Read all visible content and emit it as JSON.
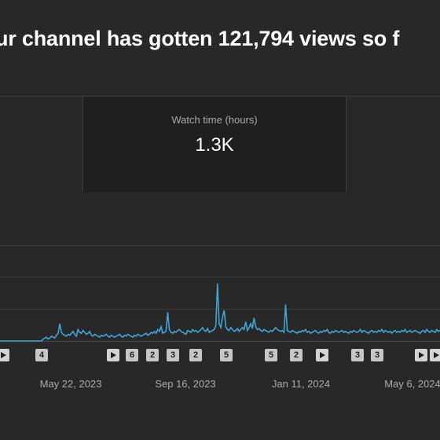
{
  "header": {
    "headline": "ur channel has gotten 121,794 views so f"
  },
  "metrics": {
    "watch_time_label": "Watch time (hours)",
    "watch_time_value": "1.3K"
  },
  "colors": {
    "line": "#3ea6d6",
    "background": "#282828",
    "card": "#1f1f1f"
  },
  "markers": [
    {
      "type": "play",
      "label": ""
    },
    {
      "type": "number",
      "label": "4"
    },
    {
      "type": "play",
      "label": ""
    },
    {
      "type": "number",
      "label": "6"
    },
    {
      "type": "number",
      "label": "2"
    },
    {
      "type": "number",
      "label": "3"
    },
    {
      "type": "number",
      "label": "2"
    },
    {
      "type": "number",
      "label": "5"
    },
    {
      "type": "number",
      "label": "5"
    },
    {
      "type": "number",
      "label": "2"
    },
    {
      "type": "play",
      "label": ""
    },
    {
      "type": "number",
      "label": "3"
    },
    {
      "type": "number",
      "label": "3"
    },
    {
      "type": "play",
      "label": ""
    },
    {
      "type": "play",
      "label": ""
    }
  ],
  "chart_data": {
    "type": "line",
    "xlabel": "",
    "ylabel": "",
    "x_tick_labels": [
      "May 22, 2023",
      "Sep 16, 2023",
      "Jan 11, 2024",
      "May 6, 2024"
    ],
    "grid": true,
    "series": [
      {
        "values": [
          0,
          0,
          0,
          0,
          0,
          0,
          0,
          0,
          0,
          0,
          0,
          0,
          0,
          0,
          0,
          0,
          0,
          0,
          0,
          0,
          0,
          0,
          0,
          0,
          0,
          0,
          2,
          3,
          4,
          2,
          3,
          5,
          4,
          3,
          6,
          8,
          18,
          9,
          7,
          6,
          5,
          7,
          6,
          8,
          10,
          7,
          5,
          12,
          9,
          8,
          11,
          9,
          7,
          8,
          10,
          6,
          5,
          7,
          6,
          5,
          4,
          6,
          5,
          6,
          7,
          5,
          4,
          6,
          5,
          4,
          5,
          6,
          7,
          5,
          4,
          6,
          5,
          7,
          6,
          5,
          4,
          6,
          5,
          7,
          6,
          5,
          6,
          7,
          8,
          6,
          7,
          9,
          8,
          10,
          8,
          12,
          10,
          15,
          8,
          9,
          10,
          30,
          12,
          9,
          8,
          10,
          9,
          11,
          12,
          10,
          9,
          8,
          7,
          11,
          10,
          9,
          12,
          10,
          11,
          9,
          10,
          12,
          14,
          11,
          10,
          13,
          9,
          10,
          11,
          12,
          16,
          60,
          18,
          14,
          25,
          32,
          15,
          12,
          11,
          14,
          12,
          10,
          11,
          13,
          10,
          12,
          14,
          12,
          20,
          11,
          14,
          18,
          13,
          24,
          15,
          12,
          13,
          11,
          10,
          12,
          11,
          10,
          9,
          11,
          10,
          12,
          14,
          12,
          11,
          10,
          11,
          9,
          38,
          11,
          10,
          9,
          11,
          10,
          9,
          8,
          10,
          9,
          11,
          10,
          12,
          9,
          10,
          8,
          9,
          10,
          11,
          9,
          8,
          10,
          9,
          11,
          10,
          12,
          9,
          8,
          10,
          9,
          11,
          10,
          9,
          10,
          11,
          9,
          10,
          9,
          8,
          10,
          9,
          11,
          10,
          9,
          10,
          12,
          9,
          11,
          10,
          9,
          8,
          10,
          11,
          9,
          10,
          9,
          11,
          10,
          12,
          9,
          11,
          10,
          9,
          10,
          8,
          10,
          11,
          9,
          10,
          9,
          11,
          10,
          12,
          9,
          10,
          11,
          9,
          10,
          11,
          10,
          9,
          8,
          10,
          11,
          9,
          12,
          10,
          9,
          11,
          10,
          9,
          12,
          10,
          11
        ]
      }
    ]
  }
}
